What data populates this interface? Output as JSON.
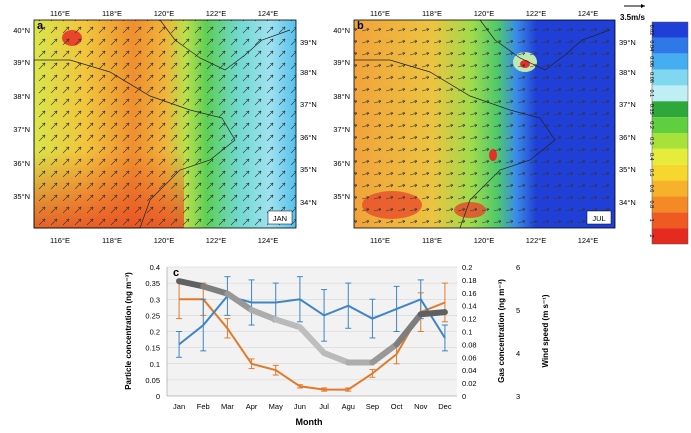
{
  "panels": {
    "a": {
      "letter": "a",
      "month": "JAN"
    },
    "b": {
      "letter": "b",
      "month": "JUL"
    },
    "c": {
      "letter": "c"
    }
  },
  "map_lon_ticks": [
    "116°E",
    "118°E",
    "120°E",
    "122°E",
    "124°E"
  ],
  "map_lat_ticks_left": [
    "40°N",
    "39°N",
    "38°N",
    "37°N",
    "36°N",
    "35°N"
  ],
  "map_lat_ticks_right": [
    "39°N",
    "38°N",
    "37°N",
    "36°N",
    "35°N",
    "34°N"
  ],
  "wind_scale": "3.5m/s",
  "colorbar": {
    "labels": [
      "0.02",
      "0.04",
      "0.06",
      "0.08",
      "0.1",
      "0.15",
      "0.2",
      "0.3",
      "0.4",
      "0.5",
      "0.6",
      "0.8",
      "1",
      "2"
    ],
    "colors": [
      "#1f3fd6",
      "#2e78e8",
      "#45aef0",
      "#7fd8ef",
      "#bfeff5",
      "#2fa83a",
      "#5fcf3f",
      "#a6e23a",
      "#e6ec3a",
      "#f6d72e",
      "#f7b22b",
      "#f48a24",
      "#ef5a20",
      "#e52a1f"
    ]
  },
  "chart_data": {
    "type": "line",
    "categories": [
      "Jan",
      "Feb",
      "Mar",
      "Apr",
      "May",
      "Jun",
      "Jul",
      "Agu",
      "Sep",
      "Oct",
      "Nov",
      "Dec"
    ],
    "xlabel": "Month",
    "ylabel_left": "Particle concentration (ng m⁻³)",
    "ylabel_gas": "Gas concentration (ng m⁻³)",
    "ylabel_wind": "Wind speed (m s⁻¹)",
    "left_ticks": [
      "0",
      "0.05",
      "0.1",
      "0.15",
      "0.2",
      "0.25",
      "0.3",
      "0.35",
      "0.4"
    ],
    "gas_ticks": [
      "0",
      "0.02",
      "0.04",
      "0.06",
      "0.08",
      "0.1",
      "0.12",
      "0.14",
      "0.16",
      "0.18",
      "0.2"
    ],
    "wind_ticks": [
      "3",
      "4",
      "5",
      "6"
    ],
    "ylim_left": [
      0,
      0.4
    ],
    "ylim_gas": [
      0,
      0.2
    ],
    "ylim_wind": [
      3,
      6
    ],
    "series": [
      {
        "axis": "particle",
        "color": "#e07b2c",
        "values": [
          0.3,
          0.3,
          0.21,
          0.1,
          0.08,
          0.03,
          0.02,
          0.02,
          0.07,
          0.13,
          0.26,
          0.29
        ],
        "err": [
          0.06,
          0.05,
          0.03,
          0.015,
          0.015,
          0.005,
          0.005,
          0.005,
          0.012,
          0.03,
          0.06,
          0.06
        ]
      },
      {
        "axis": "gas",
        "color": "#3d85c6",
        "values": [
          0.08,
          0.11,
          0.155,
          0.145,
          0.145,
          0.15,
          0.125,
          0.14,
          0.12,
          0.135,
          0.15,
          0.09
        ],
        "err": [
          0.02,
          0.04,
          0.03,
          0.035,
          0.03,
          0.035,
          0.04,
          0.035,
          0.03,
          0.035,
          0.03,
          0.02
        ]
      },
      {
        "axis": "wind",
        "color": "#6e6e6e",
        "values": [
          5.67,
          5.55,
          5.38,
          5.0,
          4.78,
          4.6,
          4.0,
          3.78,
          3.78,
          4.2,
          4.9,
          4.95
        ],
        "err": []
      }
    ]
  }
}
